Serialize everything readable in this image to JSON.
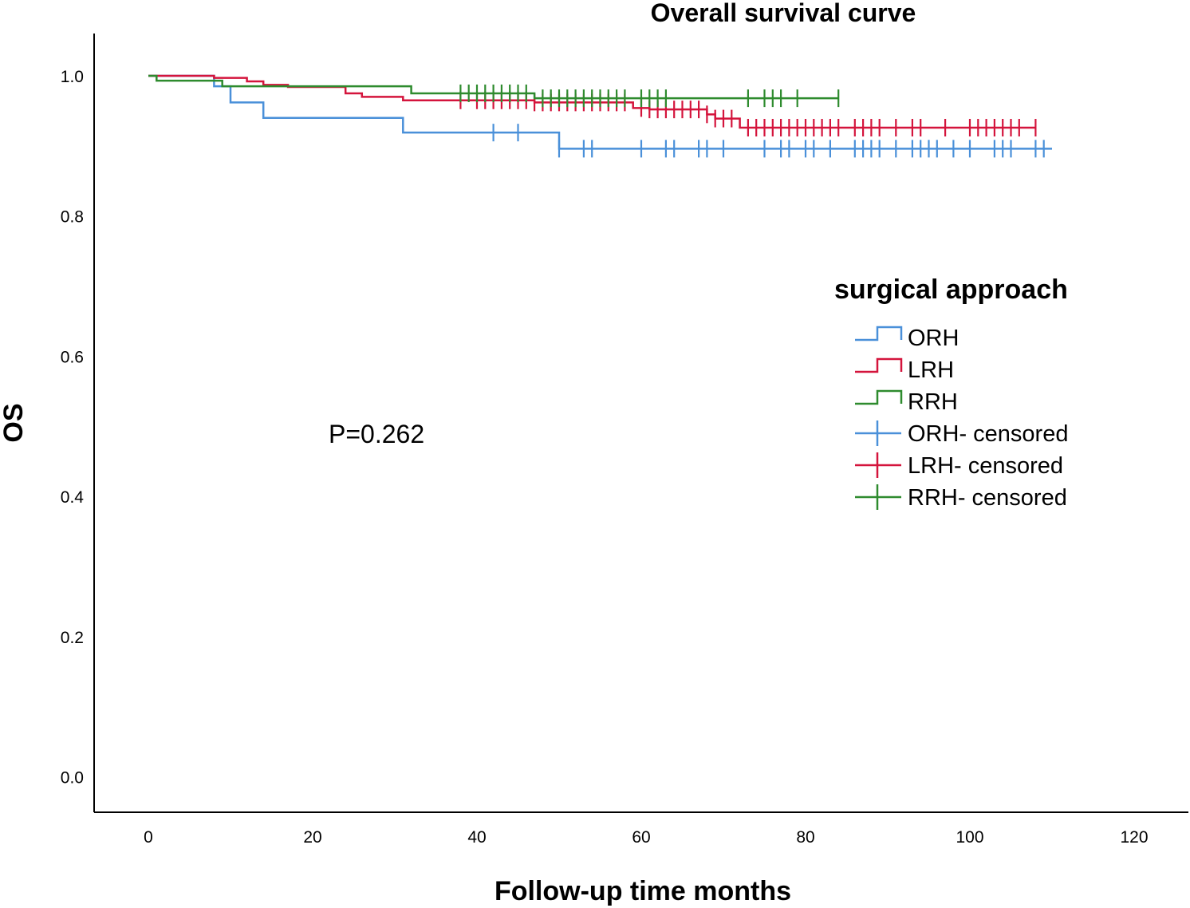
{
  "chart_data": {
    "type": "line",
    "subtype": "kaplan-meier",
    "title": "Overall survival curve",
    "xlabel": "Follow-up time months",
    "ylabel": "OS",
    "xlim": [
      0,
      125
    ],
    "ylim": [
      0,
      1.05
    ],
    "xticks": [
      0,
      20,
      40,
      60,
      80,
      100,
      120
    ],
    "yticks": [
      0.0,
      0.2,
      0.4,
      0.6,
      0.8,
      1.0
    ],
    "xtick_labels": [
      "0",
      "20",
      "40",
      "60",
      "80",
      "100",
      "120"
    ],
    "ytick_labels": [
      "0.0",
      "0.2",
      "0.4",
      "0.6",
      "0.8",
      "1.0"
    ],
    "grid": false,
    "legend_title": "surgical approach",
    "legend_position": "right",
    "annotation": "P=0.262",
    "series": [
      {
        "name": "ORH",
        "censored_label": "ORH- censored",
        "color": "#4a90d9",
        "steps": [
          [
            0,
            1.0
          ],
          [
            8,
            0.985
          ],
          [
            10,
            0.962
          ],
          [
            14,
            0.94
          ],
          [
            31,
            0.919
          ],
          [
            50,
            0.896
          ]
        ],
        "end": 110,
        "censored": [
          42,
          45,
          50,
          53,
          54,
          60,
          63,
          64,
          67,
          68,
          70,
          75,
          77,
          78,
          80,
          81,
          83,
          86,
          87,
          88,
          89,
          91,
          93,
          94,
          95,
          96,
          98,
          100,
          103,
          104,
          105,
          108,
          109
        ]
      },
      {
        "name": "LRH",
        "censored_label": "LRH- censored",
        "color": "#d4143c",
        "steps": [
          [
            0,
            1.0
          ],
          [
            8,
            0.997
          ],
          [
            12,
            0.992
          ],
          [
            14,
            0.987
          ],
          [
            17,
            0.984
          ],
          [
            24,
            0.975
          ],
          [
            26,
            0.97
          ],
          [
            31,
            0.965
          ],
          [
            47,
            0.962
          ],
          [
            59,
            0.954
          ],
          [
            61,
            0.952
          ],
          [
            68,
            0.945
          ],
          [
            69,
            0.939
          ],
          [
            72,
            0.926
          ]
        ],
        "end": 108,
        "censored": [
          38,
          40,
          41,
          42,
          43,
          44,
          45,
          46,
          47,
          48,
          49,
          50,
          51,
          52,
          53,
          54,
          55,
          56,
          57,
          58,
          60,
          61,
          62,
          63,
          64,
          65,
          66,
          67,
          68,
          69,
          70,
          71,
          73,
          74,
          75,
          76,
          77,
          78,
          79,
          80,
          81,
          82,
          83,
          84,
          86,
          87,
          88,
          89,
          91,
          93,
          94,
          97,
          100,
          101,
          102,
          103,
          104,
          105,
          106,
          108
        ]
      },
      {
        "name": "RRH",
        "censored_label": "RRH- censored",
        "color": "#2e8b2e",
        "steps": [
          [
            0,
            1.0
          ],
          [
            1,
            0.993
          ],
          [
            9,
            0.985
          ],
          [
            32,
            0.975
          ],
          [
            47,
            0.968
          ]
        ],
        "end": 84,
        "censored": [
          38,
          39,
          40,
          41,
          42,
          43,
          44,
          45,
          46,
          48,
          49,
          50,
          51,
          52,
          53,
          54,
          55,
          56,
          57,
          58,
          60,
          61,
          62,
          63,
          73,
          75,
          76,
          77,
          79,
          84
        ]
      }
    ]
  }
}
